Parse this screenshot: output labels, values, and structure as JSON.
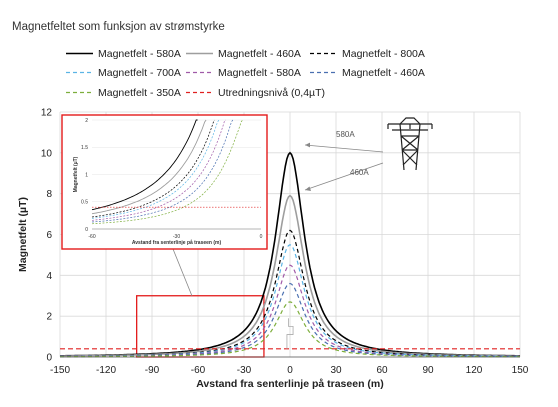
{
  "title": "Magnetfeltet som funksjon av strømstyrke",
  "chart_data": {
    "type": "line",
    "xlabel": "Avstand fra senterlinje på traseen (m)",
    "ylabel": "Magnetfelt (µT)",
    "xlim": [
      -150,
      150
    ],
    "ylim": [
      0,
      12
    ],
    "x_ticks": [
      -150,
      -120,
      -90,
      -60,
      -30,
      0,
      30,
      60,
      90,
      120,
      150
    ],
    "y_ticks": [
      0,
      2,
      4,
      6,
      8,
      10,
      12
    ],
    "grid": true,
    "legend_position": "top",
    "series": [
      {
        "name": "Magnetfelt - 580A",
        "color": "#000000",
        "style": "solid",
        "peak": 10.0
      },
      {
        "name": "Magnetfelt - 460A",
        "color": "#9e9e9e",
        "style": "solid",
        "peak": 7.9
      },
      {
        "name": "Magnetfelt - 800A",
        "color": "#000000",
        "style": "dashed",
        "peak": 6.2
      },
      {
        "name": "Magnetfelt - 700A",
        "color": "#5bb4e5",
        "style": "dashed",
        "peak": 5.5
      },
      {
        "name": "Magnetfelt - 580A",
        "color": "#a05aa8",
        "style": "dashed",
        "peak": 4.5
      },
      {
        "name": "Magnetfelt - 460A",
        "color": "#4a6fb0",
        "style": "dashed",
        "peak": 3.6
      },
      {
        "name": "Magnetfelt - 350A",
        "color": "#7dae3c",
        "style": "dashed",
        "peak": 2.7
      },
      {
        "name": "Utredningsnivå (0,4µT)",
        "color": "#e02020",
        "style": "dashed",
        "constant": 0.4
      }
    ],
    "annotations": [
      "580A",
      "460A"
    ],
    "inset": {
      "xlabel": "Avstand fra senterlinje på traseen (m)",
      "ylabel": "Magnetfelt (µT)",
      "xlim": [
        -60,
        0
      ],
      "ylim": [
        0,
        2
      ],
      "x_ticks": [
        -60,
        -30,
        0
      ],
      "y_ticks": [
        0,
        0.5,
        1,
        1.5,
        2
      ],
      "y_tick_labels": [
        "0",
        "0.5",
        "1",
        "1.5",
        "2"
      ]
    }
  }
}
